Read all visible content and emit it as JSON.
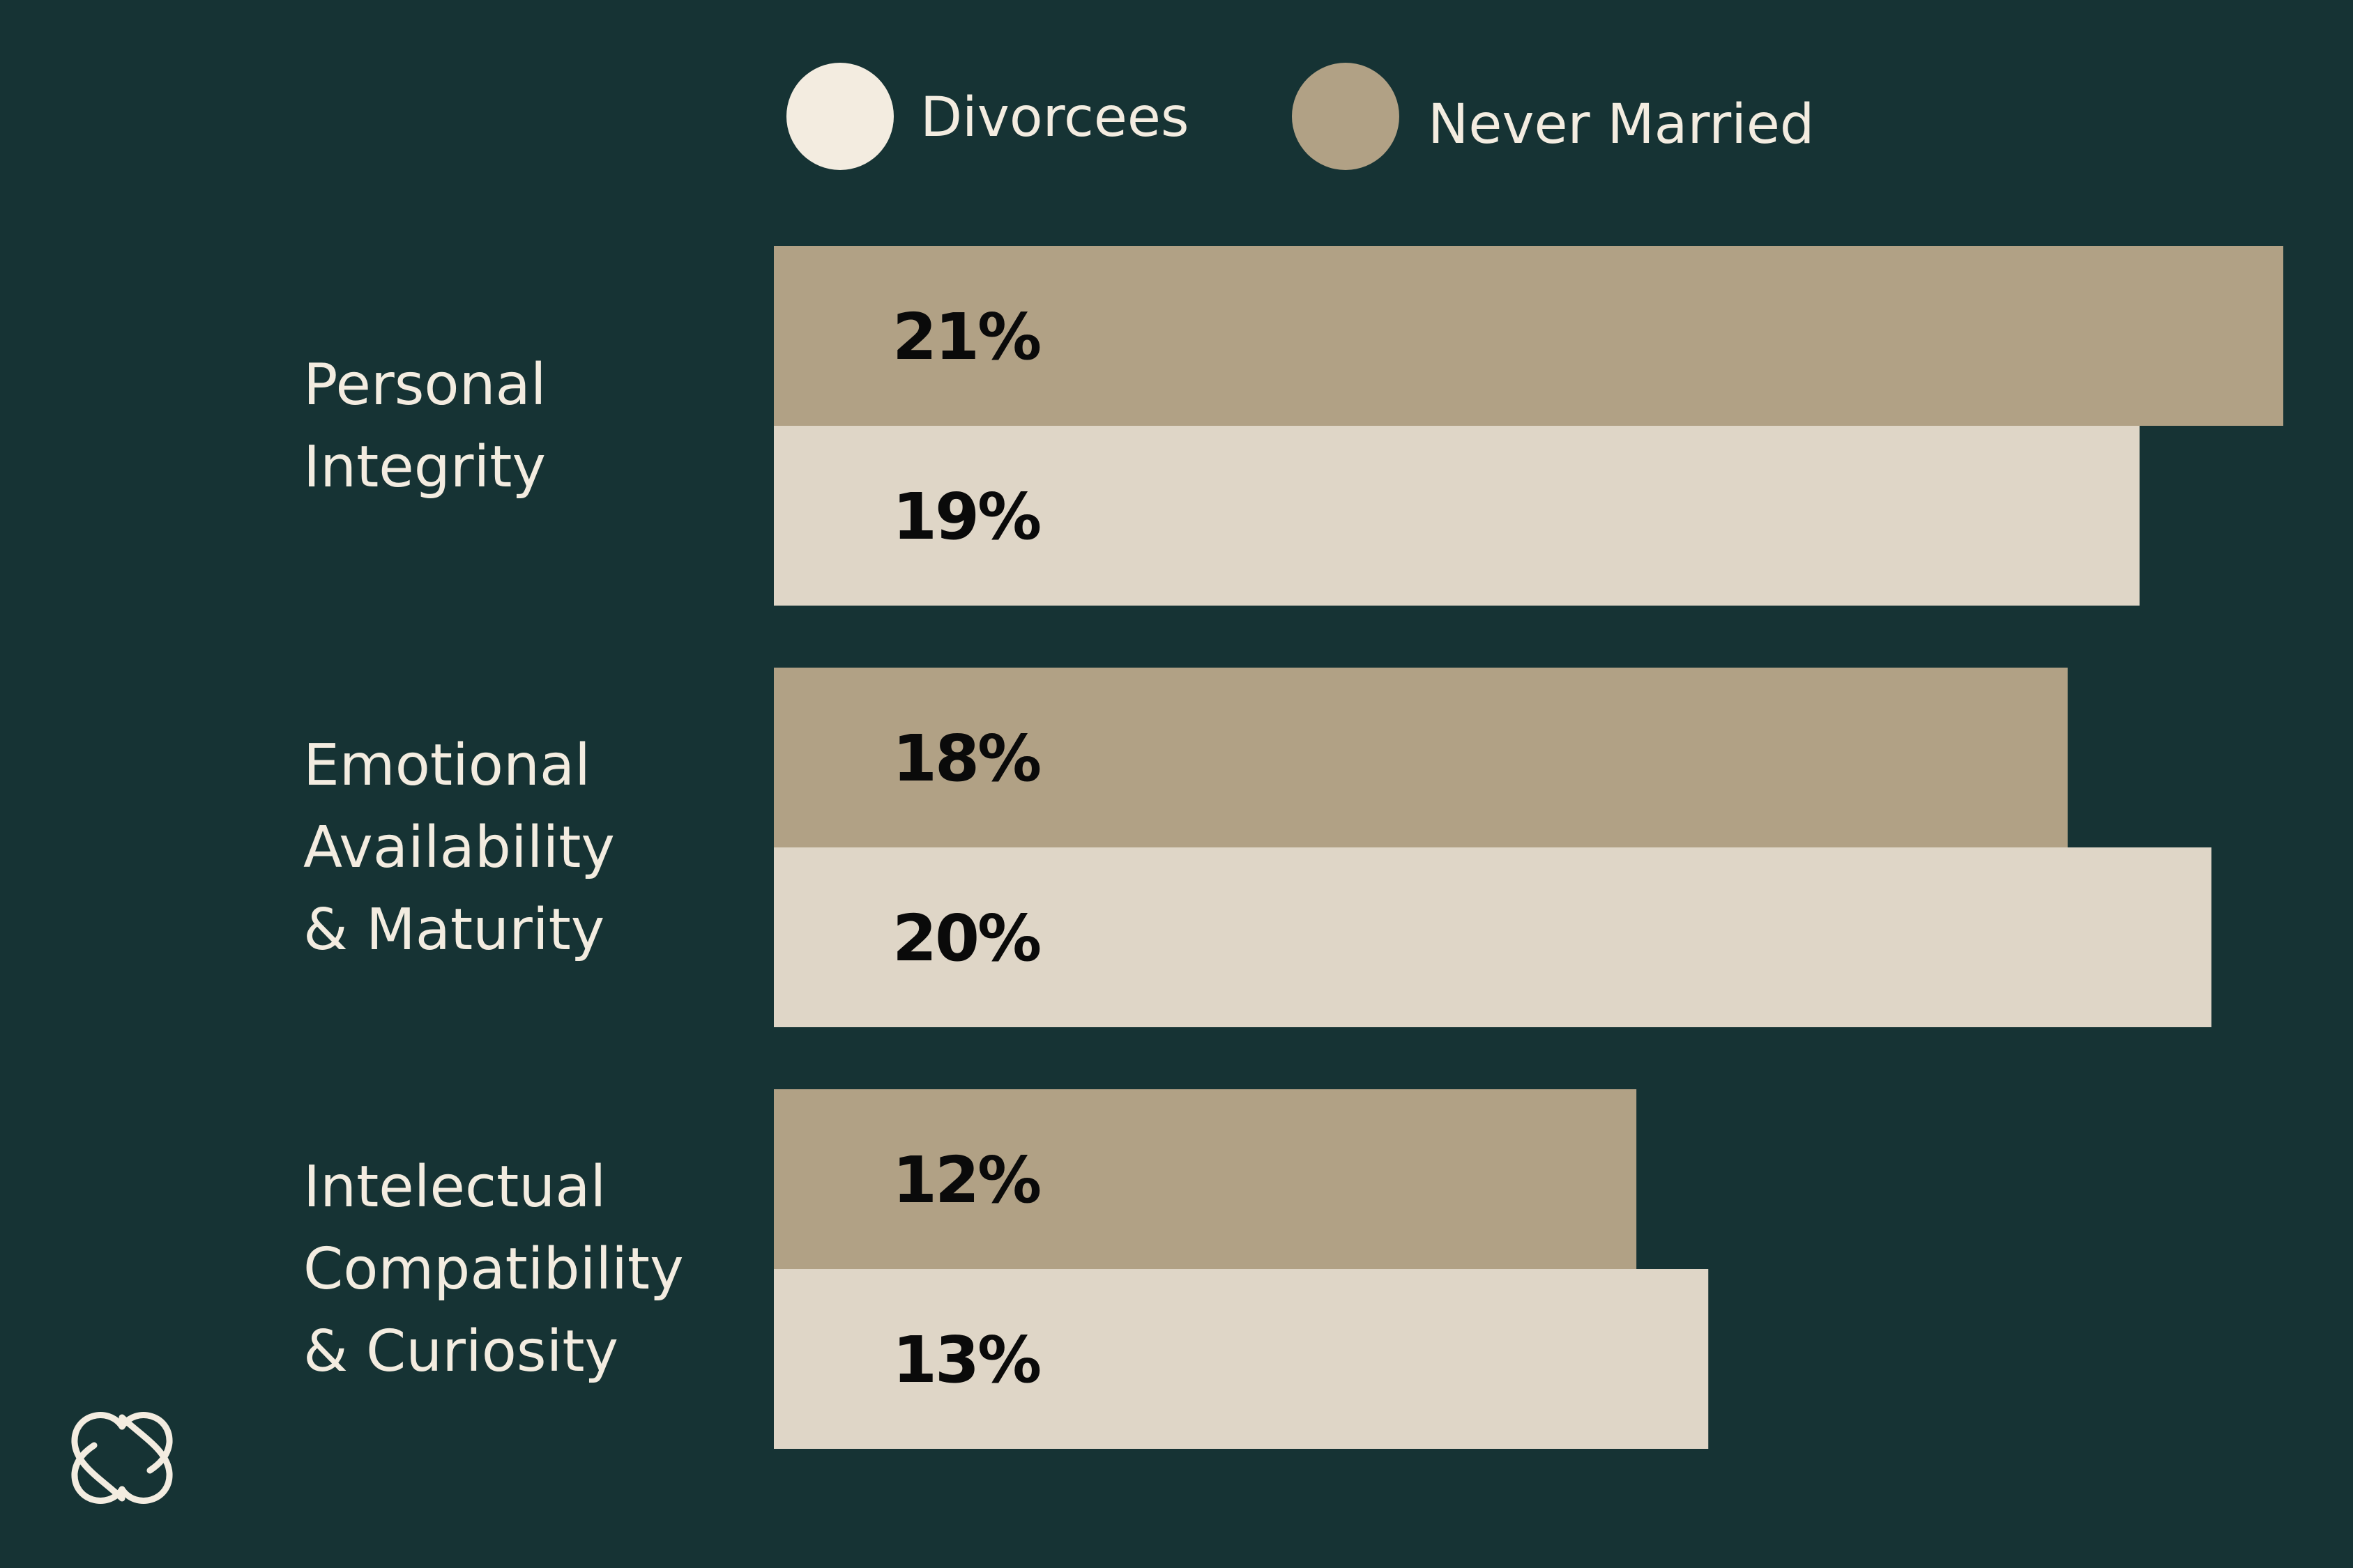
{
  "chart_data": {
    "type": "bar",
    "orientation": "horizontal",
    "categories": [
      [
        "Personal",
        "Integrity"
      ],
      [
        "Emotional",
        "Availability",
        "& Maturity"
      ],
      [
        "Intelectual",
        "Compatibility",
        "& Curiosity"
      ]
    ],
    "series": [
      {
        "name": "Never Married",
        "values": [
          21,
          18,
          12
        ],
        "labels": [
          "21%",
          "18%",
          "12%"
        ],
        "color": "#b1a185"
      },
      {
        "name": "Divorcees",
        "values": [
          19,
          20,
          13
        ],
        "labels": [
          "19%",
          "20%",
          "13%"
        ],
        "color": "#dfd6c7"
      }
    ],
    "legend": {
      "placement": "top",
      "entries": [
        {
          "name": "Divorcees",
          "color": "#f3ece0"
        },
        {
          "name": "Never Married",
          "color": "#b1a185"
        }
      ]
    },
    "xlim": [
      0,
      21
    ],
    "unit": "%",
    "grid": false,
    "background": "#163334",
    "text_color": "#f3ece0"
  },
  "logo": {
    "icon": "interlocking-hearts-icon"
  }
}
